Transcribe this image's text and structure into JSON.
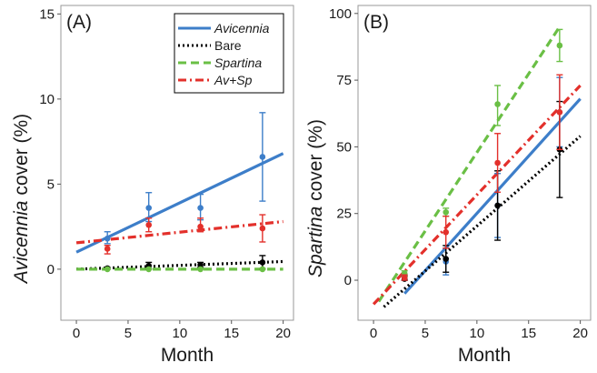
{
  "chart_data": [
    {
      "type": "scatter",
      "panel_tag": "(A)",
      "xlabel": "Month",
      "ylabel_italic": "Avicennia",
      "ylabel_rest": " cover (%)",
      "xlim": [
        -1.5,
        21
      ],
      "ylim": [
        -3,
        15.5
      ],
      "xticks": [
        0,
        5,
        10,
        15,
        20
      ],
      "yticks": [
        0,
        5,
        10,
        15
      ],
      "grid": false,
      "legend_position": "top-right",
      "series": [
        {
          "name": "Avicennia",
          "italic": true,
          "color": "#3d7ec9",
          "dash": "solid",
          "points": [
            {
              "x": 3,
              "y": 1.8,
              "lo": 1.5,
              "hi": 2.2
            },
            {
              "x": 7,
              "y": 3.6,
              "lo": 2.8,
              "hi": 4.5
            },
            {
              "x": 12,
              "y": 3.6,
              "lo": 2.9,
              "hi": 4.4
            },
            {
              "x": 18,
              "y": 6.6,
              "lo": 4.0,
              "hi": 9.2
            }
          ],
          "fit": {
            "x": [
              0,
              20
            ],
            "y": [
              1.0,
              6.8
            ]
          }
        },
        {
          "name": "Bare",
          "italic": false,
          "color": "#000000",
          "dash": "dotted",
          "points": [
            {
              "x": 3,
              "y": 0.05,
              "lo": 0.0,
              "hi": 0.1
            },
            {
              "x": 7,
              "y": 0.2,
              "lo": 0.0,
              "hi": 0.4
            },
            {
              "x": 12,
              "y": 0.25,
              "lo": 0.1,
              "hi": 0.4
            },
            {
              "x": 18,
              "y": 0.4,
              "lo": 0.0,
              "hi": 0.8
            }
          ],
          "fit": {
            "x": [
              0,
              20
            ],
            "y": [
              0.0,
              0.45
            ]
          }
        },
        {
          "name": "Spartina",
          "italic": true,
          "color": "#6abf45",
          "dash": "dashed",
          "points": [
            {
              "x": 3,
              "y": 0.0,
              "lo": 0.0,
              "hi": 0.05
            },
            {
              "x": 7,
              "y": 0.0,
              "lo": 0.0,
              "hi": 0.05
            },
            {
              "x": 12,
              "y": 0.0,
              "lo": 0.0,
              "hi": 0.05
            },
            {
              "x": 18,
              "y": 0.0,
              "lo": 0.0,
              "hi": 0.05
            }
          ],
          "fit": {
            "x": [
              0,
              20
            ],
            "y": [
              0.0,
              0.0
            ]
          }
        },
        {
          "name": "Av+Sp",
          "italic": true,
          "color": "#e3302b",
          "dash": "dashdot",
          "points": [
            {
              "x": 3,
              "y": 1.2,
              "lo": 0.9,
              "hi": 1.4
            },
            {
              "x": 7,
              "y": 2.6,
              "lo": 2.2,
              "hi": 3.0
            },
            {
              "x": 12,
              "y": 2.5,
              "lo": 2.2,
              "hi": 3.0
            },
            {
              "x": 18,
              "y": 2.4,
              "lo": 1.6,
              "hi": 3.2
            }
          ],
          "fit": {
            "x": [
              0,
              20
            ],
            "y": [
              1.55,
              2.8
            ]
          }
        }
      ]
    },
    {
      "type": "scatter",
      "panel_tag": "(B)",
      "xlabel": "Month",
      "ylabel_italic": "Spartina",
      "ylabel_rest": " cover (%)",
      "xlim": [
        -1.5,
        21
      ],
      "ylim": [
        -15,
        103
      ],
      "xticks": [
        0,
        5,
        10,
        15,
        20
      ],
      "yticks": [
        0,
        25,
        50,
        75,
        100
      ],
      "grid": false,
      "series": [
        {
          "name": "Avicennia",
          "color": "#3d7ec9",
          "dash": "solid",
          "points": [
            {
              "x": 3,
              "y": 1.0,
              "lo": 0.0,
              "hi": 2.0
            },
            {
              "x": 7,
              "y": 7.0,
              "lo": 2.0,
              "hi": 12.0
            },
            {
              "x": 12,
              "y": 28.0,
              "lo": 16.0,
              "hi": 40.0
            },
            {
              "x": 18,
              "y": 63.0,
              "lo": 50.0,
              "hi": 76.0
            }
          ],
          "fit": {
            "x": [
              3,
              20
            ],
            "y": [
              -5.0,
              68.0
            ]
          }
        },
        {
          "name": "Bare",
          "color": "#000000",
          "dash": "dotted",
          "points": [
            {
              "x": 3,
              "y": 0.5,
              "lo": 0.0,
              "hi": 1.5
            },
            {
              "x": 7,
              "y": 8.0,
              "lo": 3.0,
              "hi": 13.0
            },
            {
              "x": 12,
              "y": 28.0,
              "lo": 15.0,
              "hi": 41.0
            },
            {
              "x": 18,
              "y": 49.0,
              "lo": 31.0,
              "hi": 67.0
            }
          ],
          "fit": {
            "x": [
              1,
              20
            ],
            "y": [
              -10.0,
              54.0
            ]
          }
        },
        {
          "name": "Spartina",
          "color": "#6abf45",
          "dash": "dashed",
          "points": [
            {
              "x": 3,
              "y": 2.5,
              "lo": 1.5,
              "hi": 3.5
            },
            {
              "x": 7,
              "y": 25.5,
              "lo": 24.0,
              "hi": 27.0
            },
            {
              "x": 12,
              "y": 66.0,
              "lo": 58.0,
              "hi": 73.0
            },
            {
              "x": 18,
              "y": 88.0,
              "lo": 82.0,
              "hi": 94.0
            }
          ],
          "fit": {
            "x": [
              0.5,
              18
            ],
            "y": [
              -8.0,
              95.0
            ]
          }
        },
        {
          "name": "Av+Sp",
          "color": "#e3302b",
          "dash": "dashdot",
          "points": [
            {
              "x": 3,
              "y": 1.0,
              "lo": 0.0,
              "hi": 2.0
            },
            {
              "x": 7,
              "y": 18.0,
              "lo": 12.0,
              "hi": 24.0
            },
            {
              "x": 12,
              "y": 44.0,
              "lo": 33.0,
              "hi": 55.0
            },
            {
              "x": 18,
              "y": 63.0,
              "lo": 49.0,
              "hi": 77.0
            }
          ],
          "fit": {
            "x": [
              0,
              20
            ],
            "y": [
              -9.0,
              73.0
            ]
          }
        }
      ]
    }
  ]
}
